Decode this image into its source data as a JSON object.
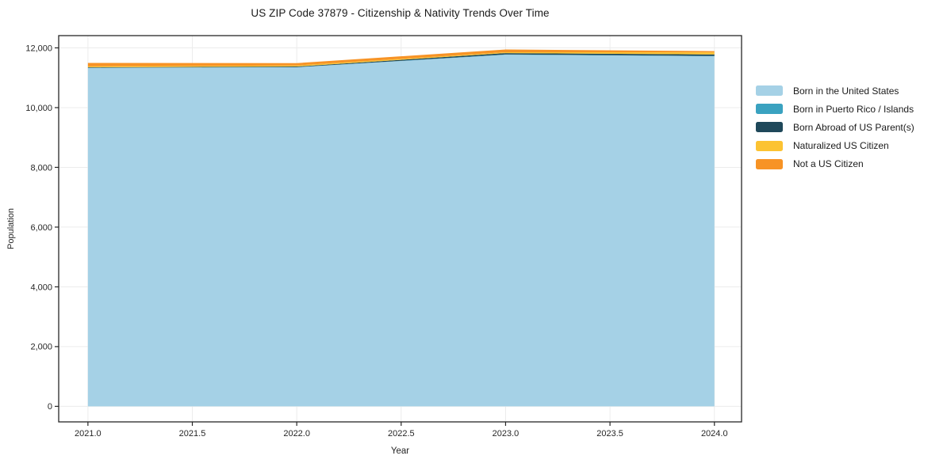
{
  "chart_data": {
    "type": "area",
    "stacked": true,
    "title": "US ZIP Code 37879 - Citizenship & Nativity Trends Over Time",
    "xlabel": "Year",
    "ylabel": "Population",
    "x": [
      2021,
      2022,
      2023,
      2024
    ],
    "series": [
      {
        "name": "Born in the United States",
        "color": "#a5d1e6",
        "values": [
          11330,
          11350,
          11770,
          11720
        ]
      },
      {
        "name": "Born in Puerto Rico / Islands",
        "color": "#3aa2c0",
        "values": [
          5,
          5,
          10,
          10
        ]
      },
      {
        "name": "Born Abroad of US Parent(s)",
        "color": "#1f485a",
        "values": [
          15,
          20,
          45,
          50
        ]
      },
      {
        "name": "Naturalized US Citizen",
        "color": "#fcc332",
        "values": [
          30,
          35,
          30,
          70
        ]
      },
      {
        "name": "Not a US Citizen",
        "color": "#f79325",
        "values": [
          115,
          80,
          90,
          40
        ]
      }
    ],
    "xticks": [
      "2021.0",
      "2021.5",
      "2022.0",
      "2022.5",
      "2023.0",
      "2023.5",
      "2024.0"
    ],
    "yticks": [
      "0",
      "2,000",
      "4,000",
      "6,000",
      "8,000",
      "10,000",
      "12,000"
    ],
    "xlim": [
      2020.86,
      2024.13
    ],
    "ylim": [
      -520,
      12410
    ],
    "grid": true,
    "legend_position": "right",
    "grid_color": "#ececec",
    "spine_color": "#262626",
    "background_color": "#ffffff"
  }
}
